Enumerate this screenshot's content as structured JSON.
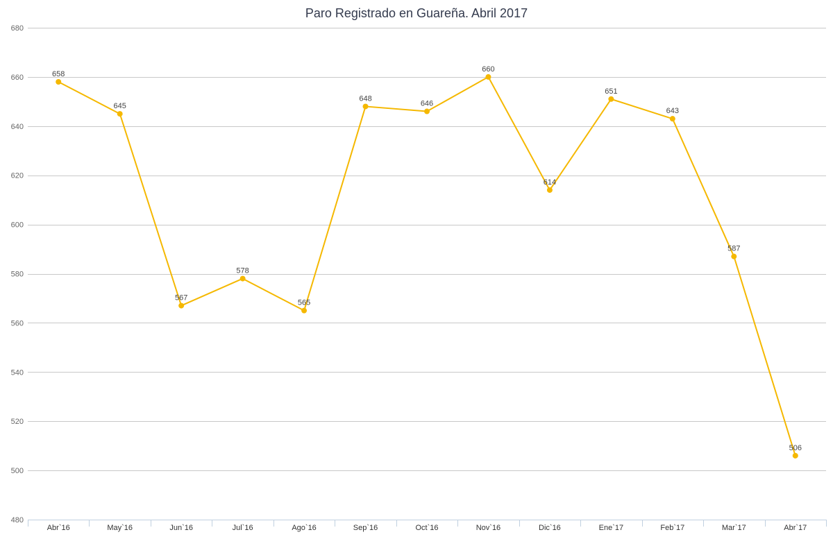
{
  "chart_data": {
    "type": "line",
    "title": "Paro Registrado en Guareña. Abril 2017",
    "xlabel": "",
    "ylabel": "",
    "categories": [
      "Abr`16",
      "May`16",
      "Jun`16",
      "Jul`16",
      "Ago`16",
      "Sep`16",
      "Oct`16",
      "Nov`16",
      "Dic`16",
      "Ene`17",
      "Feb`17",
      "Mar`17",
      "Abr`17"
    ],
    "series": [
      {
        "values": [
          658,
          645,
          567,
          578,
          565,
          648,
          646,
          660,
          614,
          651,
          643,
          587,
          506
        ]
      }
    ],
    "ylim": [
      480,
      680
    ],
    "yticks": [
      480,
      500,
      520,
      540,
      560,
      580,
      600,
      620,
      640,
      660,
      680
    ],
    "grid": true,
    "legend": "none",
    "colors": {
      "line": "#f5b800",
      "grid": "#c8c8c8",
      "axis": "#c0d0e0"
    }
  }
}
